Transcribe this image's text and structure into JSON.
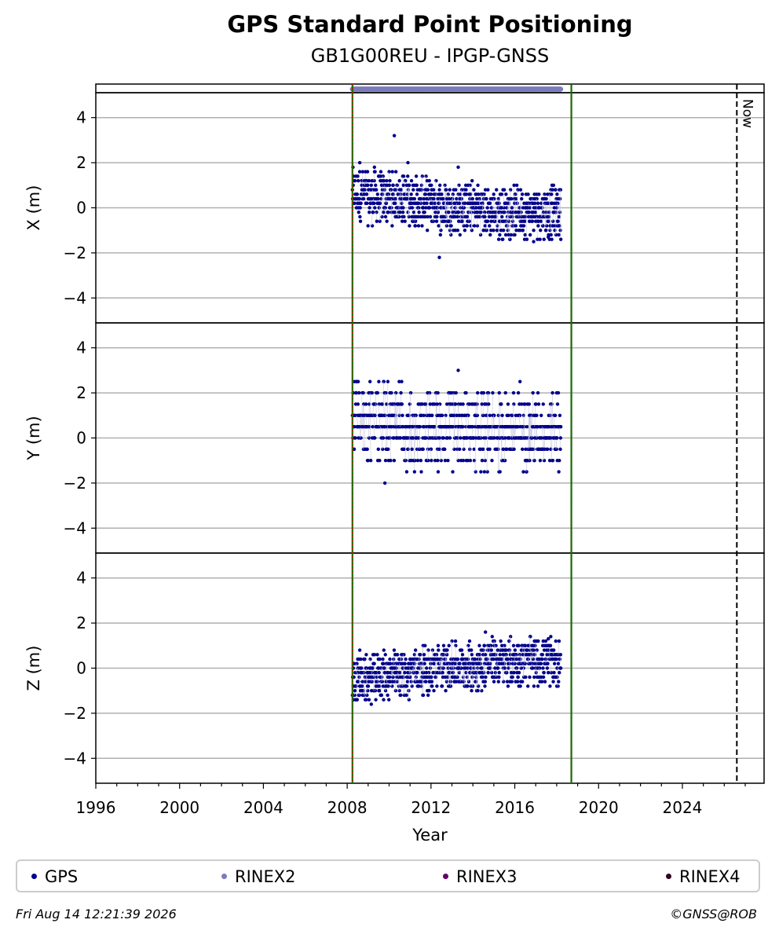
{
  "header": {
    "title": "GPS Standard Point Positioning",
    "subtitle": "GB1G00REU - IPGP-GNSS"
  },
  "chart_data": {
    "type": "scatter",
    "xlabel": "Year",
    "xlim": [
      1996.0,
      2027.9
    ],
    "x_ticks": [
      "1996",
      "2000",
      "2004",
      "2008",
      "2012",
      "2016",
      "2020",
      "2024"
    ],
    "markers": [
      {
        "name": "data-start",
        "x": 2008.25,
        "color": "#007700",
        "style": "solid+red-dotted"
      },
      {
        "name": "data-end",
        "x": 2018.7,
        "color": "#007700",
        "style": "solid+red-dotted"
      },
      {
        "name": "now",
        "x": 2026.6,
        "label": "Now",
        "color": "#000000",
        "style": "dashed"
      }
    ],
    "rinex_bar": {
      "series": "RINEX2",
      "x_start": 2008.25,
      "x_end": 2018.2,
      "color": "#7b7bbd"
    },
    "panels": [
      {
        "id": "x",
        "ylabel": "X (m)",
        "ylim": [
          -5,
          5
        ],
        "y_ticks": [
          -4,
          -2,
          0,
          2,
          4
        ],
        "y_tick_labels": [
          "−4",
          "−2",
          "0",
          "2",
          "4"
        ],
        "series": [
          {
            "name": "GPS",
            "color": "#00008b",
            "x_range": [
              2008.25,
              2018.2
            ],
            "levels": [
              -1.2,
              -1.0,
              -0.8,
              -0.6,
              -0.4,
              -0.2,
              0.0,
              0.2,
              0.4,
              0.6,
              0.8,
              1.0,
              1.2
            ],
            "level_weights": [
              0.02,
              0.03,
              0.06,
              0.08,
              0.1,
              0.12,
              0.14,
              0.12,
              0.11,
              0.09,
              0.06,
              0.04,
              0.03
            ],
            "trend": [
              [
                2008.25,
                0.55
              ],
              [
                2011.0,
                0.35
              ],
              [
                2013.0,
                0.0
              ],
              [
                2016.0,
                -0.2
              ],
              [
                2018.2,
                -0.25
              ]
            ],
            "outliers": [
              [
                2010.25,
                3.2
              ],
              [
                2010.9,
                2.0
              ],
              [
                2008.6,
                2.0
              ],
              [
                2009.3,
                1.8
              ],
              [
                2013.3,
                1.8
              ],
              [
                2012.4,
                -2.2
              ],
              [
                2016.9,
                -1.5
              ],
              [
                2017.6,
                -1.3
              ]
            ]
          }
        ]
      },
      {
        "id": "y",
        "ylabel": "Y (m)",
        "ylim": [
          -5,
          5
        ],
        "y_ticks": [
          -4,
          -2,
          0,
          2,
          4
        ],
        "y_tick_labels": [
          "−4",
          "−2",
          "0",
          "2",
          "4"
        ],
        "series": [
          {
            "name": "GPS",
            "color": "#00008b",
            "x_range": [
              2008.25,
              2018.2
            ],
            "levels": [
              -1.5,
              -1.0,
              -0.5,
              0.0,
              0.5,
              1.0,
              1.5,
              2.0
            ],
            "level_weights": [
              0.03,
              0.06,
              0.12,
              0.26,
              0.26,
              0.15,
              0.08,
              0.04
            ],
            "trend": [
              [
                2008.25,
                0.3
              ],
              [
                2013.0,
                0.2
              ],
              [
                2018.2,
                0.15
              ]
            ],
            "outliers": [
              [
                2013.3,
                3.0
              ],
              [
                2016.25,
                2.5
              ],
              [
                2008.35,
                2.5
              ],
              [
                2009.8,
                -2.0
              ],
              [
                2018.0,
                2.0
              ]
            ]
          }
        ]
      },
      {
        "id": "z",
        "ylabel": "Z (m)",
        "ylim": [
          -5,
          5
        ],
        "y_ticks": [
          -4,
          -2,
          0,
          2,
          4
        ],
        "y_tick_labels": [
          "−4",
          "−2",
          "0",
          "2",
          "4"
        ],
        "series": [
          {
            "name": "GPS",
            "color": "#00008b",
            "x_range": [
              2008.25,
              2018.2
            ],
            "levels": [
              -1.2,
              -1.0,
              -0.8,
              -0.6,
              -0.4,
              -0.2,
              0.0,
              0.2,
              0.4,
              0.6,
              0.8,
              1.0
            ],
            "level_weights": [
              0.03,
              0.05,
              0.07,
              0.09,
              0.11,
              0.13,
              0.14,
              0.13,
              0.11,
              0.08,
              0.04,
              0.02
            ],
            "trend": [
              [
                2008.25,
                -0.45
              ],
              [
                2011.0,
                -0.1
              ],
              [
                2013.0,
                0.25
              ],
              [
                2016.0,
                0.35
              ],
              [
                2018.2,
                0.4
              ]
            ],
            "outliers": [
              [
                2014.6,
                1.6
              ],
              [
                2017.6,
                1.3
              ],
              [
                2008.3,
                -1.4
              ],
              [
                2008.6,
                0.8
              ]
            ]
          }
        ]
      }
    ]
  },
  "legend": {
    "items": [
      {
        "label": "GPS",
        "color": "#00008b"
      },
      {
        "label": "RINEX2",
        "color": "#7b7bbd"
      },
      {
        "label": "RINEX3",
        "color": "#660066"
      },
      {
        "label": "RINEX4",
        "color": "#330022"
      }
    ]
  },
  "footer": {
    "timestamp": "Fri Aug 14 12:21:39 2026",
    "copyright": "©GNSS@ROB"
  }
}
